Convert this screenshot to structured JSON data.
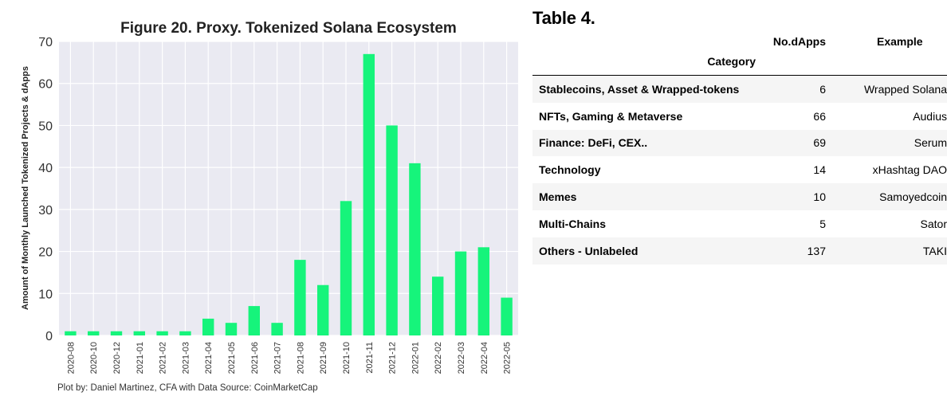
{
  "chart_data": {
    "type": "bar",
    "title": "Figure 20. Proxy. Tokenized Solana Ecosystem",
    "ylabel": "Amount of Monthly Launched Tokenized Projects & dApps",
    "xlabel": "",
    "caption": "Plot by: Daniel Martinez, CFA with Data Source: CoinMarketCap",
    "categories": [
      "2020-08",
      "2020-10",
      "2020-12",
      "2021-01",
      "2021-02",
      "2021-03",
      "2021-04",
      "2021-05",
      "2021-06",
      "2021-07",
      "2021-08",
      "2021-09",
      "2021-10",
      "2021-11",
      "2021-12",
      "2022-01",
      "2022-02",
      "2022-03",
      "2022-04",
      "2022-05"
    ],
    "values": [
      1,
      1,
      1,
      1,
      1,
      1,
      4,
      3,
      7,
      3,
      18,
      12,
      32,
      67,
      50,
      41,
      14,
      20,
      21,
      9
    ],
    "ylim": [
      0,
      70
    ],
    "yticks": [
      0,
      10,
      20,
      30,
      40,
      50,
      60,
      70
    ],
    "grid": true,
    "bar_color": "#16f47b",
    "background_color": "#eaeaf2"
  },
  "table": {
    "heading": "Table 4.",
    "col_headers": [
      "No.dApps",
      "Example"
    ],
    "index_header": "Category",
    "rows": [
      {
        "category": "Stablecoins, Asset & Wrapped-tokens",
        "count": "6",
        "example": "Wrapped Solana"
      },
      {
        "category": "NFTs, Gaming & Metaverse",
        "count": "66",
        "example": "Audius"
      },
      {
        "category": "Finance: DeFi, CEX..",
        "count": "69",
        "example": "Serum"
      },
      {
        "category": "Technology",
        "count": "14",
        "example": "xHashtag DAO"
      },
      {
        "category": "Memes",
        "count": "10",
        "example": "Samoyedcoin"
      },
      {
        "category": "Multi-Chains",
        "count": "5",
        "example": "Sator"
      },
      {
        "category": "Others - Unlabeled",
        "count": "137",
        "example": "TAKI"
      }
    ]
  }
}
